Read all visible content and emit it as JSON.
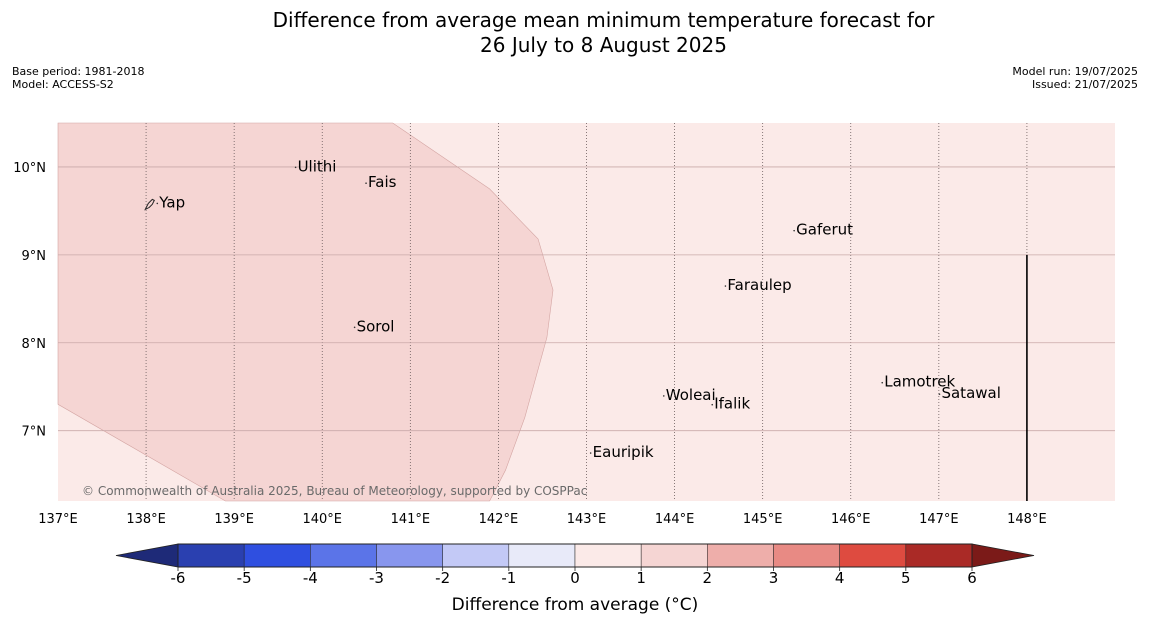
{
  "title": {
    "line1": "Difference from average mean minimum temperature forecast for",
    "line2": "26 July to 8 August 2025"
  },
  "meta_left": {
    "base_period": "Base period: 1981-2018",
    "model": "Model: ACCESS-S2"
  },
  "meta_right": {
    "model_run": "Model run: 19/07/2025",
    "issued": "Issued: 21/07/2025"
  },
  "map": {
    "lon_range": [
      137,
      149
    ],
    "lat_range": [
      6.2,
      10.5
    ],
    "lon_ticks": [
      {
        "value": 137,
        "label": "137°E"
      },
      {
        "value": 138,
        "label": "138°E"
      },
      {
        "value": 139,
        "label": "139°E"
      },
      {
        "value": 140,
        "label": "140°E"
      },
      {
        "value": 141,
        "label": "141°E"
      },
      {
        "value": 142,
        "label": "142°E"
      },
      {
        "value": 143,
        "label": "143°E"
      },
      {
        "value": 144,
        "label": "144°E"
      },
      {
        "value": 145,
        "label": "145°E"
      },
      {
        "value": 146,
        "label": "146°E"
      },
      {
        "value": 147,
        "label": "147°E"
      },
      {
        "value": 148,
        "label": "148°E"
      }
    ],
    "lat_ticks": [
      {
        "value": 10,
        "label": "10°N"
      },
      {
        "value": 9,
        "label": "9°N"
      },
      {
        "value": 8,
        "label": "8°N"
      },
      {
        "value": 7,
        "label": "7°N"
      }
    ],
    "background_category": "0 to 1",
    "warm_region": {
      "category": "1 to 2",
      "outline_lonlat": [
        [
          137,
          10.5
        ],
        [
          140.8,
          10.5
        ],
        [
          141.9,
          9.75
        ],
        [
          142.45,
          9.18
        ],
        [
          142.62,
          8.6
        ],
        [
          142.55,
          8.06
        ],
        [
          142.3,
          7.15
        ],
        [
          142.08,
          6.55
        ],
        [
          141.9,
          6.2
        ],
        [
          138.9,
          6.2
        ],
        [
          137,
          7.3
        ]
      ]
    },
    "boundary_line": {
      "lon": 148,
      "lat_from": 6.2,
      "lat_to": 9.0
    },
    "places": [
      {
        "name": "Yap",
        "lon": 138.15,
        "lat": 9.54
      },
      {
        "name": "Ulithi",
        "lon": 139.72,
        "lat": 9.95
      },
      {
        "name": "Fais",
        "lon": 140.52,
        "lat": 9.77
      },
      {
        "name": "Sorol",
        "lon": 140.39,
        "lat": 8.13
      },
      {
        "name": "Gaferut",
        "lon": 145.38,
        "lat": 9.23
      },
      {
        "name": "Faraulep",
        "lon": 144.6,
        "lat": 8.6
      },
      {
        "name": "Woleai",
        "lon": 143.9,
        "lat": 7.35
      },
      {
        "name": "Ifalik",
        "lon": 144.45,
        "lat": 7.25
      },
      {
        "name": "Lamotrek",
        "lon": 146.38,
        "lat": 7.5
      },
      {
        "name": "Satawal",
        "lon": 147.03,
        "lat": 7.37
      },
      {
        "name": "Eauripik",
        "lon": 143.07,
        "lat": 6.7
      }
    ],
    "copyright": "© Commonwealth of Australia 2025, Bureau of Meteorology, supported by COSPPac"
  },
  "colorbar": {
    "label": "Difference from average (°C)",
    "ticks": [
      "-6",
      "-5",
      "-4",
      "-3",
      "-2",
      "-1",
      "0",
      "1",
      "2",
      "3",
      "4",
      "5",
      "6"
    ],
    "under_color": "#1e2a78",
    "over_color": "#7b1a18",
    "colors": [
      "#2a40b0",
      "#2f4fe0",
      "#5b74e8",
      "#8896ee",
      "#c3c9f6",
      "#e8eaf9",
      "#fbeae8",
      "#f5d5d3",
      "#eeaeaa",
      "#e88a84",
      "#de4b40",
      "#aa2a26"
    ]
  }
}
